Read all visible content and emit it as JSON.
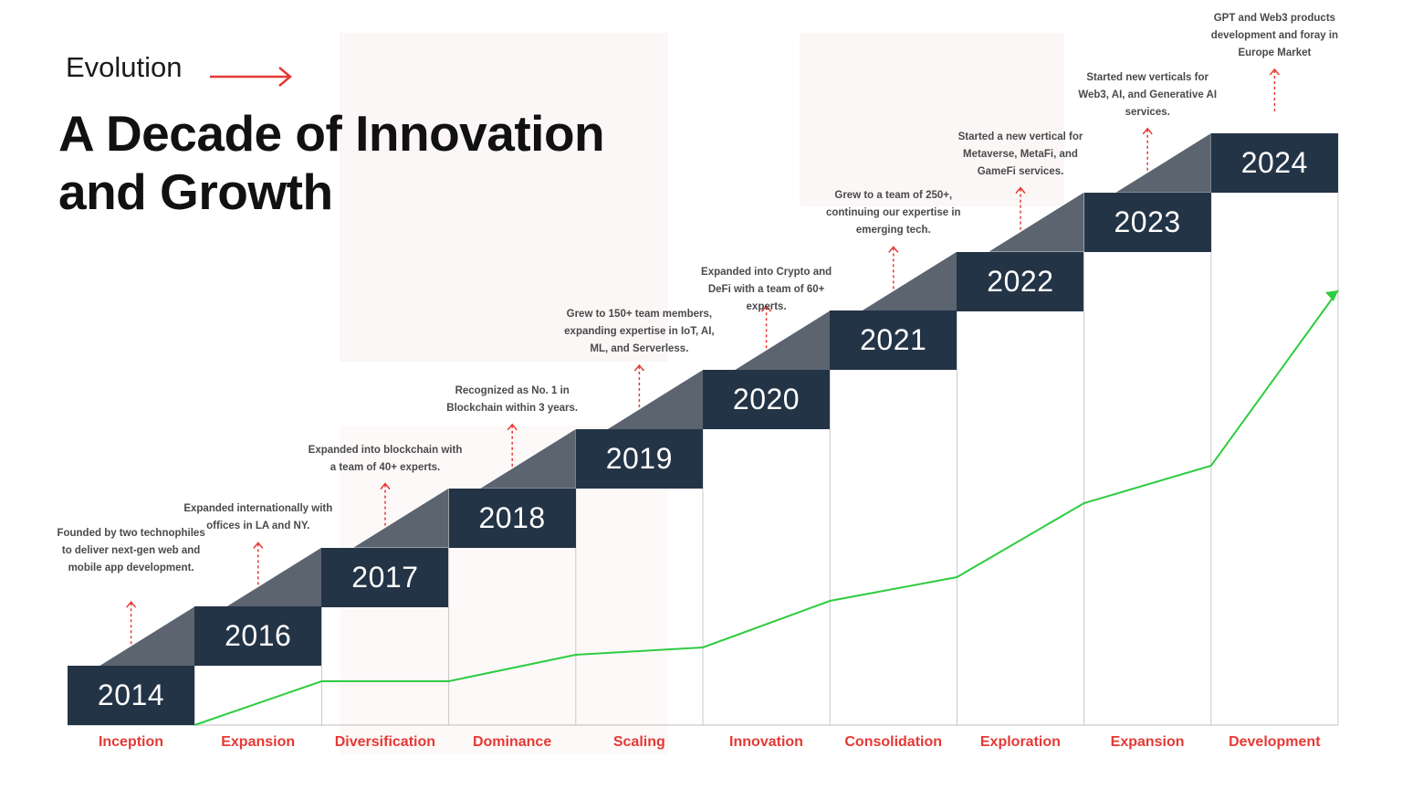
{
  "header": {
    "eyebrow": "Evolution",
    "title_line1": "A Decade of Innovation",
    "title_line2": "and Growth"
  },
  "colors": {
    "accent": "#e53935",
    "block": "#243447",
    "ramp": "#5c6470",
    "growth_line": "#2ecc40"
  },
  "milestones": [
    {
      "year": "2014",
      "phase": "Inception",
      "note": "Founded by two technophiles to deliver next-gen web and mobile app development."
    },
    {
      "year": "2016",
      "phase": "Expansion",
      "note": "Expanded internationally with offices in LA and NY."
    },
    {
      "year": "2017",
      "phase": "Diversification",
      "note": "Expanded into blockchain with a team of 40+ experts."
    },
    {
      "year": "2018",
      "phase": "Dominance",
      "note": "Recognized as No. 1 in Blockchain within 3 years."
    },
    {
      "year": "2019",
      "phase": "Scaling",
      "note": "Grew to 150+ team members, expanding expertise in IoT, AI, ML, and Serverless."
    },
    {
      "year": "2020",
      "phase": "Innovation",
      "note": "Expanded into Crypto and DeFi with a team of 60+ experts."
    },
    {
      "year": "2021",
      "phase": "Consolidation",
      "note": "Grew to a team of 250+, continuing our expertise in emerging tech."
    },
    {
      "year": "2022",
      "phase": "Exploration",
      "note": "Started a new vertical for Metaverse, MetaFi, and GameFi services."
    },
    {
      "year": "2023",
      "phase": "Expansion",
      "note": "Started new verticals for Web3, AI, and Generative AI services."
    },
    {
      "year": "2024",
      "phase": "Development",
      "note": "GPT and Web3 products development and foray in Europe Market"
    }
  ]
}
